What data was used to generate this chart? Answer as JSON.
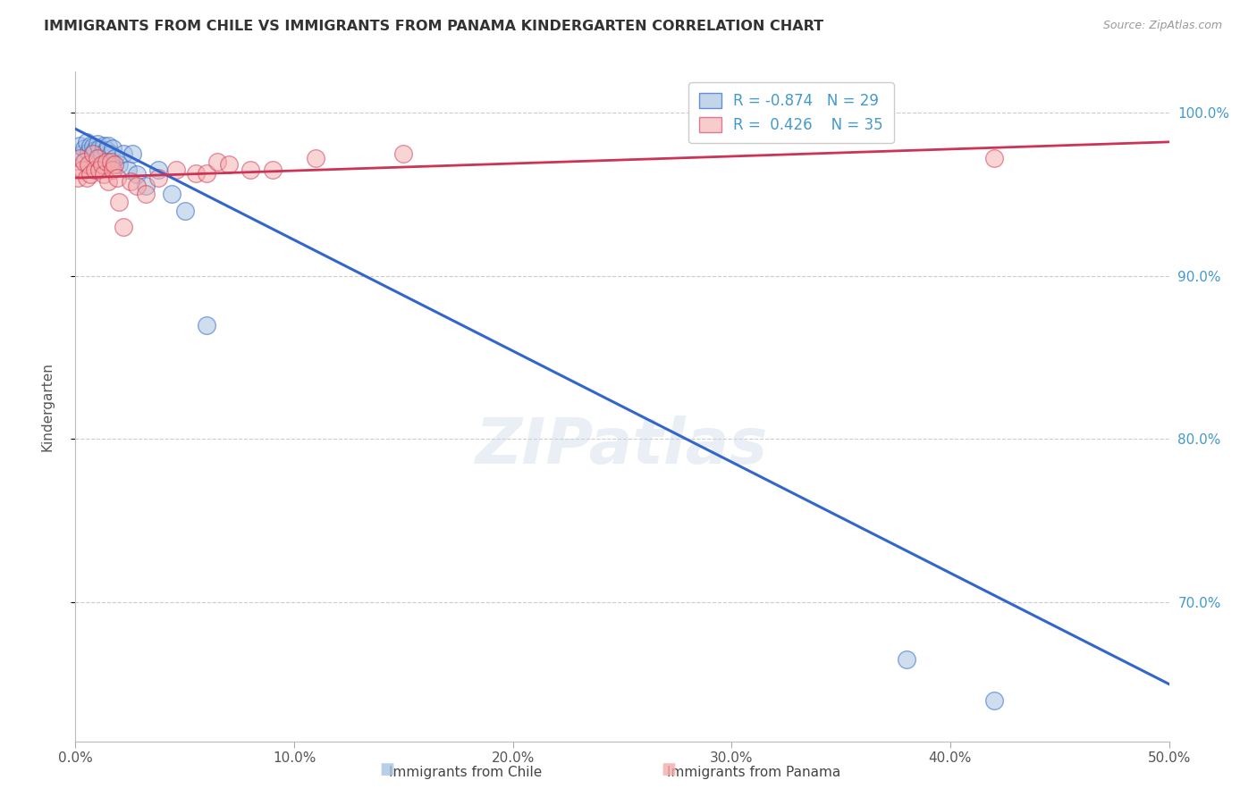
{
  "title": "IMMIGRANTS FROM CHILE VS IMMIGRANTS FROM PANAMA KINDERGARTEN CORRELATION CHART",
  "source": "Source: ZipAtlas.com",
  "ylabel": "Kindergarten",
  "x_min": 0.0,
  "x_max": 0.5,
  "y_min": 0.615,
  "y_max": 1.025,
  "legend_r_blue": "-0.874",
  "legend_n_blue": "29",
  "legend_r_pink": "0.426",
  "legend_n_pink": "35",
  "legend_label_blue": "Immigrants from Chile",
  "legend_label_pink": "Immigrants from Panama",
  "blue_color": "#A8C4E0",
  "pink_color": "#F4AAAA",
  "trendline_blue_color": "#3366CC",
  "trendline_pink_color": "#CC3355",
  "watermark": "ZIPatlas",
  "blue_scatter_x": [
    0.002,
    0.003,
    0.004,
    0.005,
    0.006,
    0.007,
    0.008,
    0.009,
    0.01,
    0.011,
    0.012,
    0.013,
    0.014,
    0.015,
    0.016,
    0.017,
    0.018,
    0.02,
    0.022,
    0.024,
    0.026,
    0.028,
    0.032,
    0.038,
    0.044,
    0.05,
    0.06,
    0.38,
    0.42
  ],
  "blue_scatter_y": [
    0.98,
    0.975,
    0.978,
    0.982,
    0.976,
    0.98,
    0.979,
    0.977,
    0.981,
    0.978,
    0.975,
    0.98,
    0.977,
    0.98,
    0.975,
    0.978,
    0.972,
    0.968,
    0.975,
    0.965,
    0.975,
    0.962,
    0.955,
    0.965,
    0.95,
    0.94,
    0.87,
    0.665,
    0.64
  ],
  "pink_scatter_x": [
    0.001,
    0.002,
    0.003,
    0.004,
    0.005,
    0.006,
    0.007,
    0.008,
    0.009,
    0.01,
    0.011,
    0.012,
    0.013,
    0.014,
    0.015,
    0.016,
    0.017,
    0.018,
    0.019,
    0.02,
    0.022,
    0.025,
    0.028,
    0.032,
    0.038,
    0.046,
    0.055,
    0.06,
    0.065,
    0.07,
    0.08,
    0.09,
    0.11,
    0.15,
    0.42
  ],
  "pink_scatter_y": [
    0.96,
    0.972,
    0.965,
    0.97,
    0.96,
    0.968,
    0.962,
    0.975,
    0.965,
    0.972,
    0.965,
    0.968,
    0.962,
    0.97,
    0.958,
    0.97,
    0.965,
    0.968,
    0.96,
    0.945,
    0.93,
    0.958,
    0.955,
    0.95,
    0.96,
    0.965,
    0.963,
    0.963,
    0.97,
    0.968,
    0.965,
    0.965,
    0.972,
    0.975,
    0.972
  ],
  "blue_trendline_x": [
    0.0,
    0.5
  ],
  "blue_trendline_y": [
    0.99,
    0.65
  ],
  "pink_trendline_x": [
    0.0,
    0.5
  ],
  "pink_trendline_y": [
    0.96,
    0.982
  ],
  "grid_color": "#CCCCCC",
  "background_color": "#FFFFFF"
}
